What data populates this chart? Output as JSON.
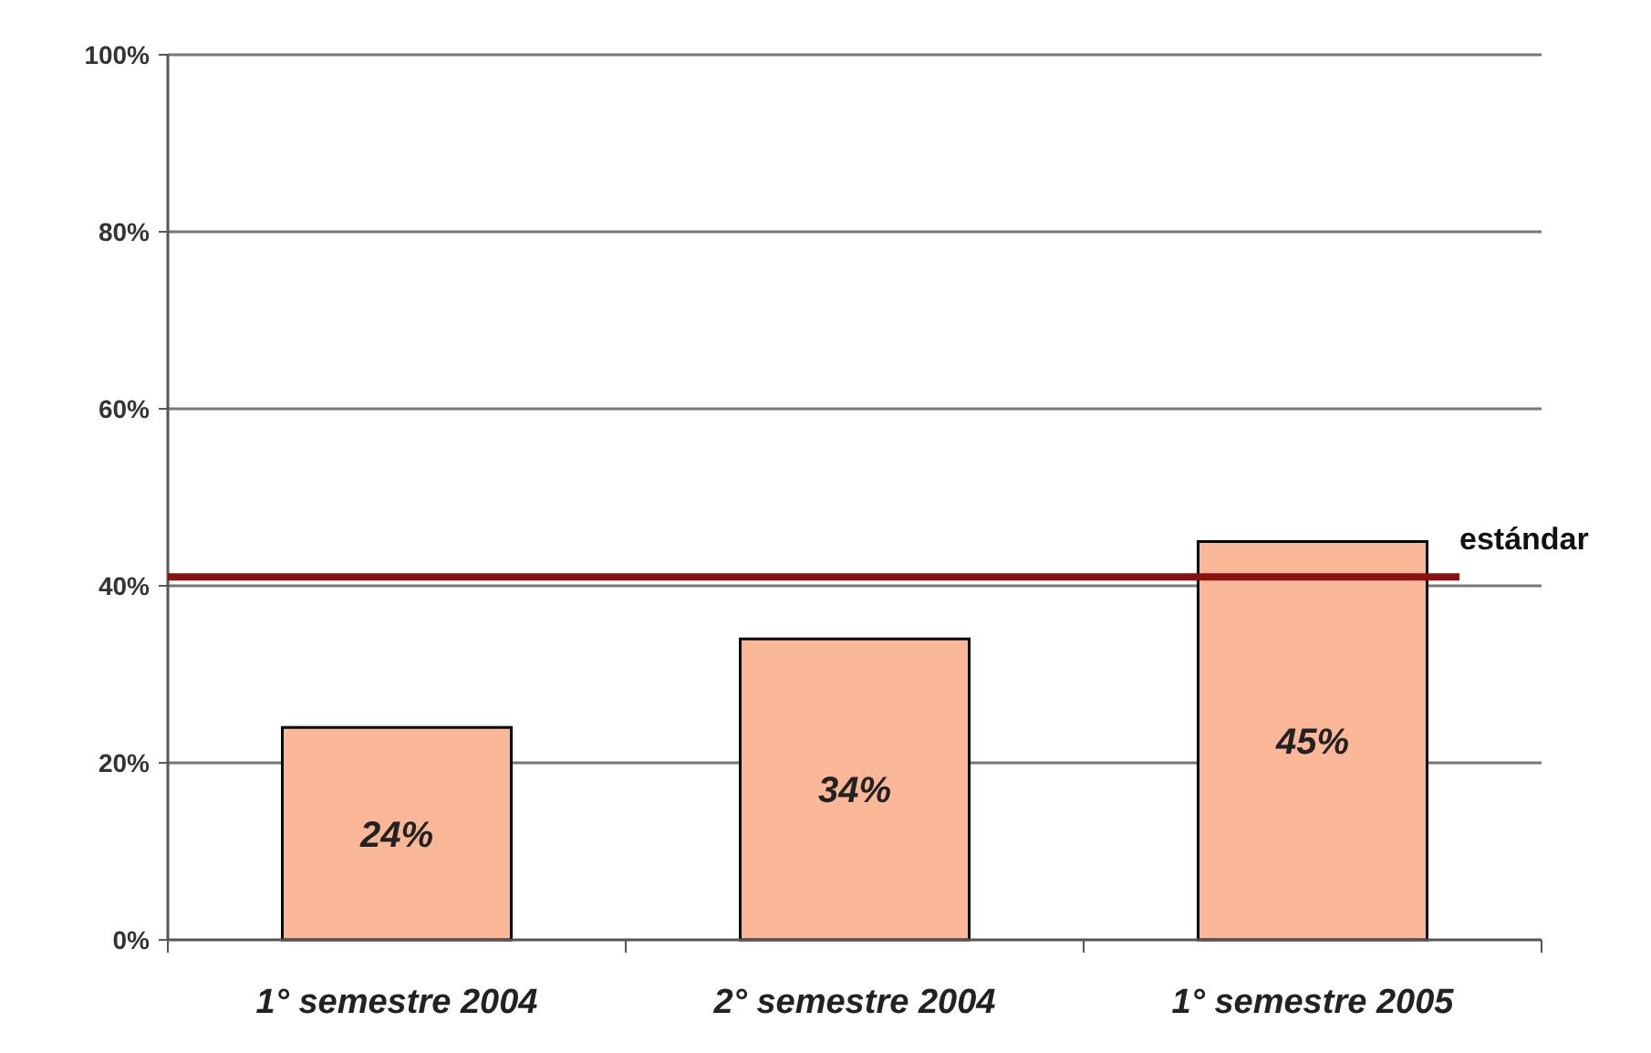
{
  "chart_data": {
    "type": "bar",
    "categories": [
      "1° semestre 2004",
      "2° semestre 2004",
      "1° semestre 2005"
    ],
    "values": [
      24,
      34,
      45
    ],
    "color": "#fbb898",
    "value_labels": [
      "24%",
      "34%",
      "45%"
    ],
    "ylim": [
      0,
      100
    ],
    "yticks": [
      {
        "value": 0,
        "label": "0%"
      },
      {
        "value": 20,
        "label": "20%"
      },
      {
        "value": 40,
        "label": "40%"
      },
      {
        "value": 60,
        "label": "60%"
      },
      {
        "value": 80,
        "label": "80%"
      },
      {
        "value": 100,
        "label": "100%"
      }
    ],
    "grid": "y",
    "ref_lines": [
      {
        "axis": "y",
        "value": 41,
        "label": "estándar",
        "color": "#8b1010"
      }
    ]
  }
}
